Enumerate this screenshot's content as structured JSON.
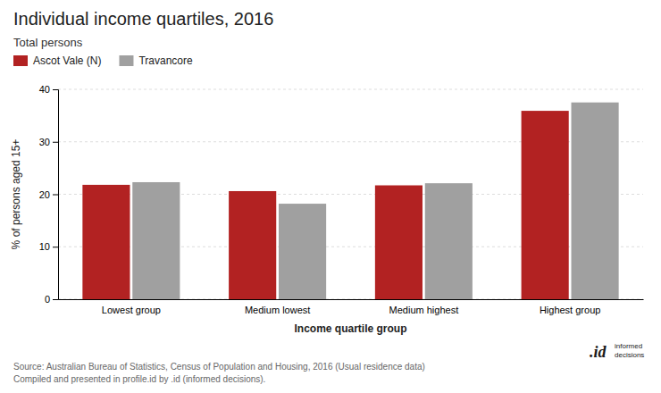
{
  "chart_data": {
    "type": "bar",
    "title": "Individual income quartiles, 2016",
    "subtitle": "Total persons",
    "categories": [
      "Lowest group",
      "Medium lowest",
      "Medium highest",
      "Highest group"
    ],
    "series": [
      {
        "name": "Ascot Vale (N)",
        "color": "#b22222",
        "values": [
          21.8,
          20.6,
          21.7,
          35.9
        ]
      },
      {
        "name": "Travancore",
        "color": "#a0a0a0",
        "values": [
          22.3,
          18.2,
          22.1,
          37.5
        ]
      }
    ],
    "ylabel": "% of persons aged 15+",
    "xlabel": "Income quartile group",
    "ylim": [
      0,
      40
    ],
    "yticks": [
      0,
      10,
      20,
      30,
      40
    ],
    "grid": true,
    "legend": "top-left",
    "source": [
      "Source: Australian Bureau of Statistics, Census of Population and Housing, 2016 (Usual residence data)",
      "Compiled and presented in profile.id by .id (informed decisions)."
    ],
    "annotations": [
      ".id",
      "informed",
      "decisions"
    ]
  }
}
